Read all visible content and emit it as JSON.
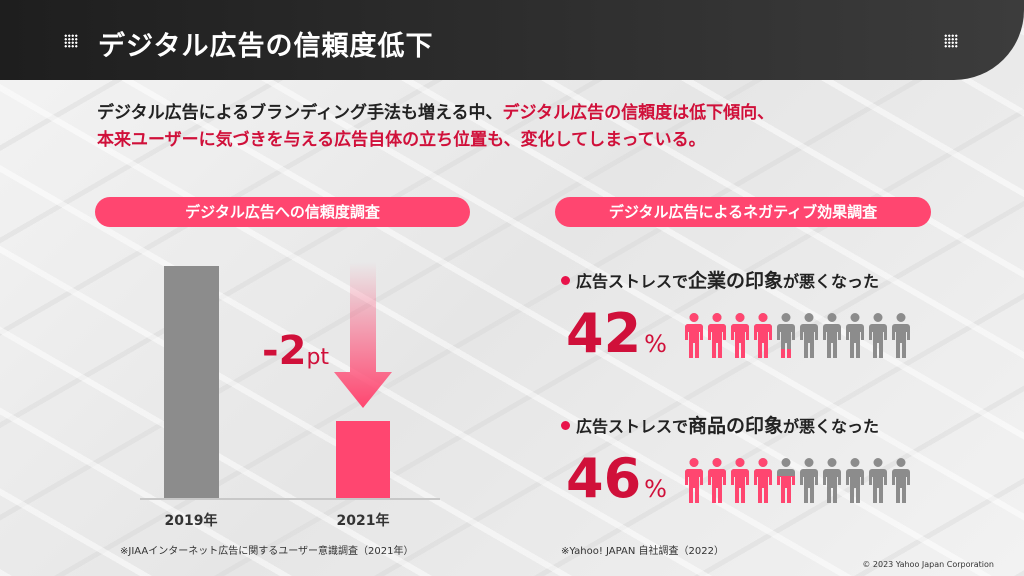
{
  "header": {
    "title": "デジタル広告の信頼度低下"
  },
  "lead": {
    "line1_black": "デジタル広告によるブランディング手法も増える中、",
    "line1_red": "デジタル広告の信頼度は低下傾向、",
    "line2_red": "本来ユーザーに気づきを与える広告自体の立ち位置も、変化してしまっている。"
  },
  "left": {
    "pill": "デジタル広告への信頼度調査",
    "years": [
      "2019年",
      "2021年"
    ],
    "delta_value": "-2",
    "delta_unit": "pt",
    "note": "※JIAAインターネット広告に関するユーザー意識調査（2021年）"
  },
  "right": {
    "pill": "デジタル広告によるネガティブ効果調査",
    "items": [
      {
        "pre": "広告ストレスで",
        "emph": "企業の印象",
        "post": "が悪くなった",
        "value": "42",
        "unit": "%",
        "fraction": 0.42
      },
      {
        "pre": "広告ストレスで",
        "emph": "商品の印象",
        "post": "が悪くなった",
        "value": "46",
        "unit": "%",
        "fraction": 0.46
      }
    ],
    "note": "※Yahoo! JAPAN 自社調査（2022）"
  },
  "copyright": "© 2023 Yahoo Japan Corporation",
  "colors": {
    "accent": "#ff4670",
    "red": "#d0103a",
    "gray": "#8c8c8c"
  }
}
